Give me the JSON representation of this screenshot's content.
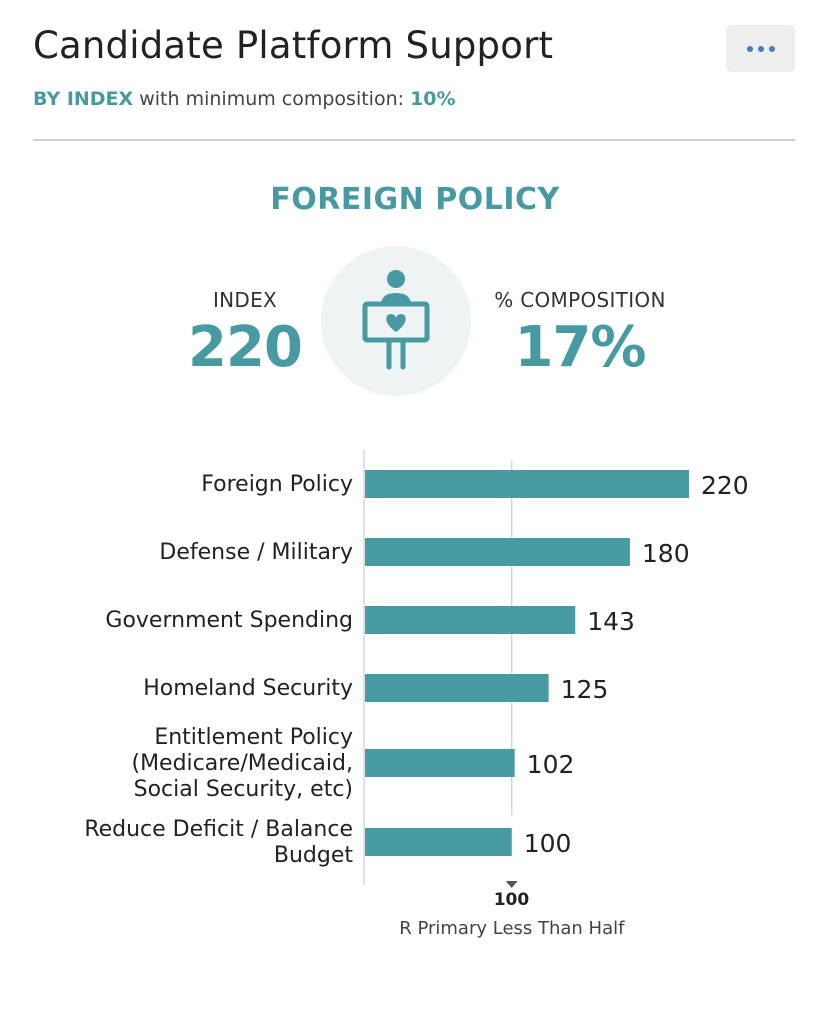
{
  "header": {
    "title": "Candidate Platform Support",
    "subtitle_mode": "BY INDEX",
    "subtitle_text": "with minimum composition:",
    "subtitle_value": "10%",
    "more_icon": "more-horizontal-icon"
  },
  "summary": {
    "section_title": "FOREIGN POLICY",
    "index_label": "INDEX",
    "index_value": "220",
    "composition_label": "% COMPOSITION",
    "composition_value": "17%",
    "icon": "person-holding-heart-sign-icon"
  },
  "colors": {
    "accent": "#479aa2",
    "bar": "#489ba3",
    "text": "#222222",
    "more_dots": "#3f7fc4"
  },
  "chart_data": {
    "type": "bar",
    "orientation": "horizontal",
    "categories": [
      "Foreign Policy",
      "Defense / Military",
      "Government Spending",
      "Homeland Security",
      "Entitlement Policy\n(Medicare/Medicaid,\nSocial Security, etc)",
      "Reduce Deficit / Balance\nBudget"
    ],
    "values": [
      220,
      180,
      143,
      125,
      102,
      100
    ],
    "reference_line": {
      "value": 100,
      "label": "100"
    },
    "xlabel": "R Primary Less Than Half",
    "xlim": [
      0,
      220
    ]
  }
}
